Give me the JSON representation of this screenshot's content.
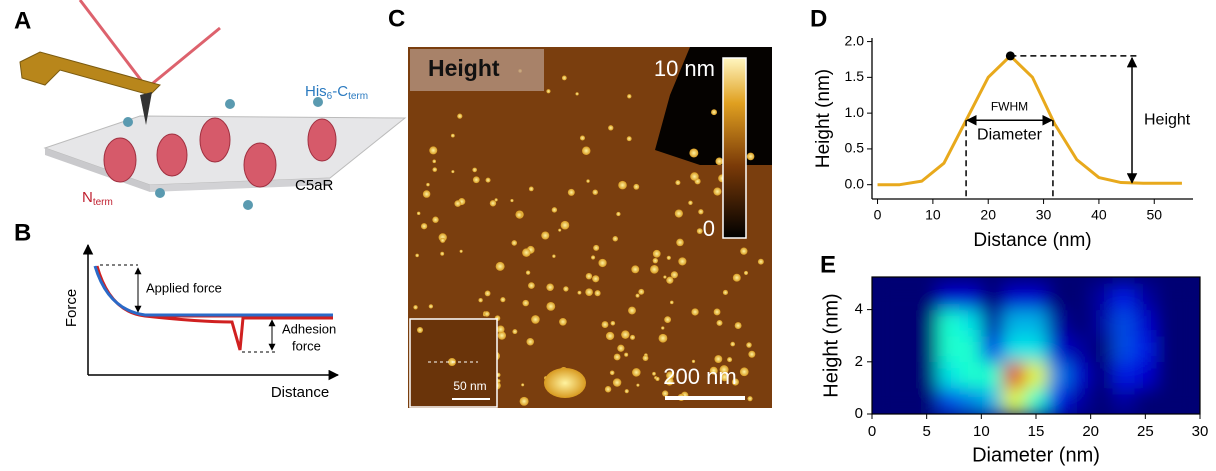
{
  "panel_labels": [
    "A",
    "B",
    "C",
    "D",
    "E"
  ],
  "panel_a": {
    "his_tag": [
      "His",
      "6",
      "-C",
      "term"
    ],
    "n_term": [
      "N",
      "term"
    ],
    "protein": "C5aR"
  },
  "panel_b": {
    "y_label": "Force",
    "x_label": "Distance",
    "applied": "Applied force",
    "adhesion": [
      "Adhesion",
      "force"
    ]
  },
  "panel_c": {
    "channel": "Height",
    "colorbar_max": "10 nm",
    "colorbar_min": "0",
    "scale_bar": "200 nm",
    "inset_scale_bar": "50 nm"
  },
  "chart_data": [
    {
      "type": "line",
      "color": "#e8a91c",
      "x": [
        0,
        4,
        8,
        12,
        16,
        20,
        24,
        28,
        32,
        36,
        40,
        44,
        48,
        55
      ],
      "values": [
        0,
        0,
        0.05,
        0.3,
        0.9,
        1.5,
        1.8,
        1.5,
        0.85,
        0.35,
        0.1,
        0.03,
        0.02,
        0.02
      ],
      "xlim": [
        -1,
        57
      ],
      "ylim": [
        -0.2,
        2.05
      ],
      "xticks": [
        0,
        10,
        20,
        30,
        40,
        50
      ],
      "yticks": [
        {
          "value": 0,
          "label": "0.0"
        },
        0.5,
        {
          "value": 1,
          "label": "1.0"
        },
        1.5,
        {
          "value": 2,
          "label": "2.0"
        }
      ],
      "x_label": "Distance (nm)",
      "y_label": "Height (nm)",
      "annotations": [
        "FWHM",
        "Diameter",
        "Height"
      ]
    },
    {
      "type": "heatmap",
      "colormap": "jet",
      "x": [
        1,
        3,
        5,
        7,
        9,
        11,
        13,
        15,
        17,
        19,
        21,
        23,
        25,
        27,
        29
      ],
      "y": [
        0.5,
        1.5,
        2.5,
        3.5,
        4.5
      ],
      "values": [
        [
          0,
          0,
          0,
          0.2,
          0.25,
          0.3,
          0.6,
          0.4,
          0.15,
          0.05,
          0,
          0.05,
          0,
          0,
          0
        ],
        [
          0,
          0,
          0,
          0.35,
          0.4,
          0.4,
          0.9,
          0.6,
          0.25,
          0.1,
          0,
          0.15,
          0.1,
          0,
          0
        ],
        [
          0,
          0,
          0,
          0.4,
          0.4,
          0.15,
          0.35,
          0.35,
          0.1,
          0.05,
          0,
          0.2,
          0.15,
          0,
          0
        ],
        [
          0,
          0,
          0,
          0.4,
          0.35,
          0.05,
          0.3,
          0.3,
          0.05,
          0,
          0.05,
          0.2,
          0.1,
          0,
          0
        ],
        [
          0,
          0,
          0,
          0.1,
          0.1,
          0,
          0.1,
          0.1,
          0,
          0,
          0.05,
          0.15,
          0.05,
          0,
          0
        ]
      ],
      "xlim": [
        0,
        30
      ],
      "ylim": [
        0,
        5.25
      ],
      "xticks": [
        0,
        5,
        10,
        15,
        20,
        25,
        30
      ],
      "yticks": [
        0,
        2,
        4
      ],
      "x_label": "Diameter (nm)",
      "y_label": "Height (nm)"
    }
  ]
}
